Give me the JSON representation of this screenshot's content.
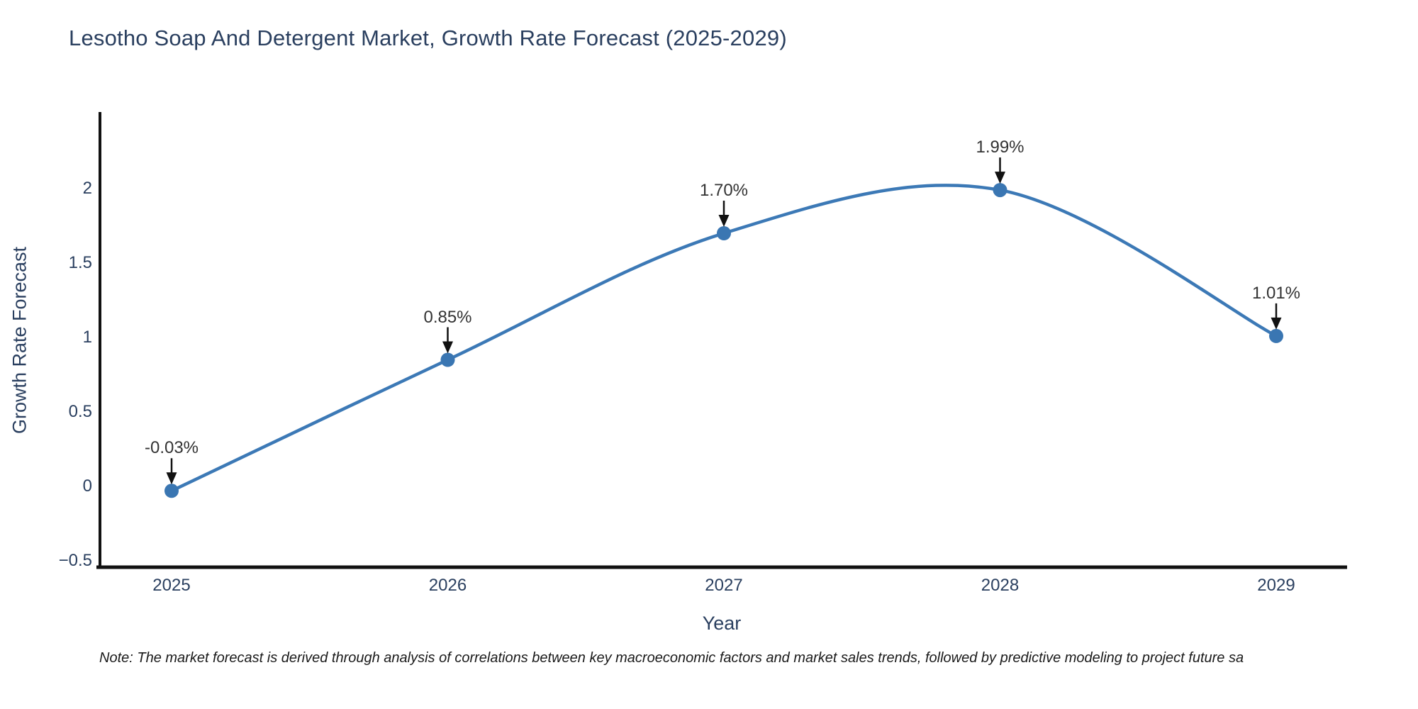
{
  "header": {
    "title": "Lesotho Soap And Detergent Market, Growth Rate Forecast (2025-2029)"
  },
  "footnote": {
    "text": "Note: The market forecast is derived through analysis of correlations between key macroeconomic factors and market sales trends, followed by predictive modeling to project future sa"
  },
  "chart_data": {
    "type": "line",
    "title": "Lesotho Soap And Detergent Market, Growth Rate Forecast (2025-2029)",
    "xlabel": "Year",
    "ylabel": "Growth Rate Forecast",
    "line_shape": "spline",
    "grid": false,
    "legend": false,
    "x": [
      2025,
      2026,
      2027,
      2028,
      2029
    ],
    "series": [
      {
        "name": "Growth Rate Forecast",
        "values": [
          -0.03,
          0.85,
          1.7,
          1.99,
          1.01
        ],
        "point_labels": [
          "-0.03%",
          "0.85%",
          "1.70%",
          "1.99%",
          "1.01%"
        ]
      }
    ],
    "x_ticks": [
      {
        "value": 2025,
        "label": "2025"
      },
      {
        "value": 2026,
        "label": "2026"
      },
      {
        "value": 2027,
        "label": "2027"
      },
      {
        "value": 2028,
        "label": "2028"
      },
      {
        "value": 2029,
        "label": "2029"
      }
    ],
    "y_ticks": [
      {
        "value": 2,
        "label": "2"
      },
      {
        "value": 1.5,
        "label": "1.5"
      },
      {
        "value": 1,
        "label": "1"
      },
      {
        "value": 0.5,
        "label": "0.5"
      },
      {
        "value": 0,
        "label": "0"
      },
      {
        "value": -0.5,
        "label": "−0.5"
      }
    ],
    "ylim": [
      -0.55,
      2.55
    ],
    "xlim": [
      2024.73,
      2029.26
    ],
    "colors": {
      "line": "#3c79b6",
      "marker": "#3a76b2",
      "axis": "#111111",
      "annotation_text": "#333333",
      "annotation_arrow": "#111111",
      "title_text": "#2a3f5f",
      "tick_text": "#2a3f5f",
      "background": "#ffffff"
    }
  }
}
